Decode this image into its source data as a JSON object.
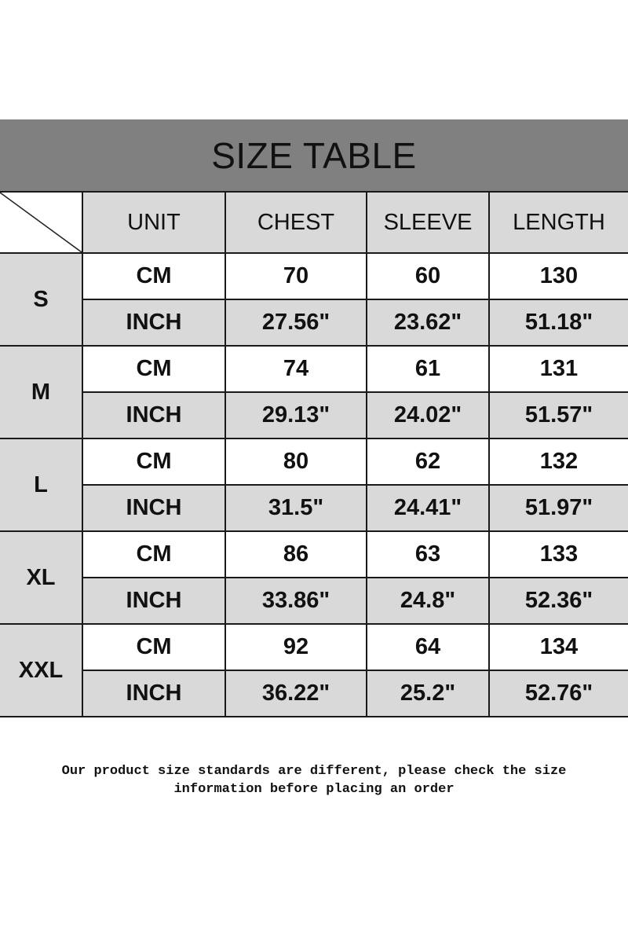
{
  "title": "SIZE TABLE",
  "headers": [
    "UNIT",
    "CHEST",
    "SLEEVE",
    "LENGTH"
  ],
  "rows": [
    {
      "size": "S",
      "cm": {
        "unit": "CM",
        "values": [
          "70",
          "60",
          "130"
        ]
      },
      "inch": {
        "unit": "INCH",
        "values": [
          "27.56\"",
          "23.62\"",
          "51.18\""
        ]
      }
    },
    {
      "size": "M",
      "cm": {
        "unit": "CM",
        "values": [
          "74",
          "61",
          "131"
        ]
      },
      "inch": {
        "unit": "INCH",
        "values": [
          "29.13\"",
          "24.02\"",
          "51.57\""
        ]
      }
    },
    {
      "size": "L",
      "cm": {
        "unit": "CM",
        "values": [
          "80",
          "62",
          "132"
        ]
      },
      "inch": {
        "unit": "INCH",
        "values": [
          "31.5\"",
          "24.41\"",
          "51.97\""
        ]
      }
    },
    {
      "size": "XL",
      "cm": {
        "unit": "CM",
        "values": [
          "86",
          "63",
          "133"
        ]
      },
      "inch": {
        "unit": "INCH",
        "values": [
          "33.86\"",
          "24.8\"",
          "52.36\""
        ]
      }
    },
    {
      "size": "XXL",
      "cm": {
        "unit": "CM",
        "values": [
          "92",
          "64",
          "134"
        ]
      },
      "inch": {
        "unit": "INCH",
        "values": [
          "36.22\"",
          "25.2\"",
          "52.76\""
        ]
      }
    }
  ],
  "note_line1": "Our product size standards are different, please check the size",
  "note_line2": "information before placing an order",
  "colors": {
    "title_bar": "#808080",
    "cell_gray": "#d9d9d9",
    "cell_white": "#ffffff"
  }
}
